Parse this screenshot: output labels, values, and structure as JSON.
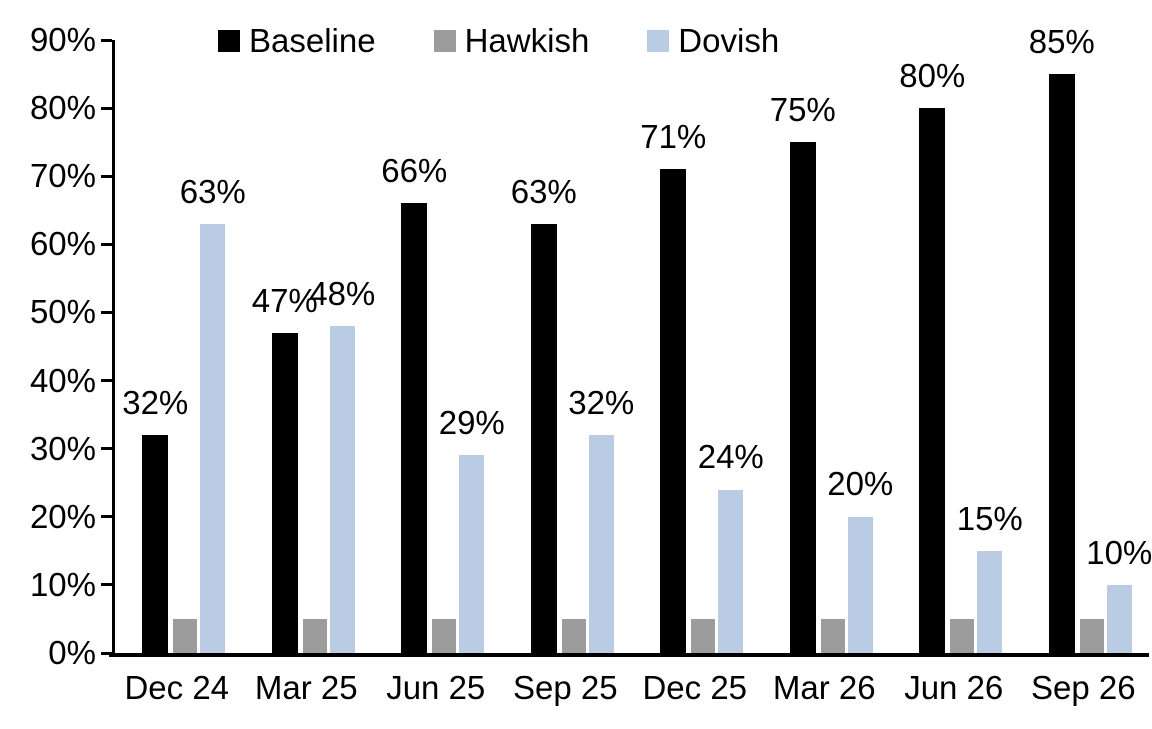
{
  "chart_data": {
    "type": "bar",
    "title": "",
    "categories": [
      "Dec 24",
      "Mar 25",
      "Jun 25",
      "Sep 25",
      "Dec 25",
      "Mar 26",
      "Jun 26",
      "Sep 26"
    ],
    "series": [
      {
        "name": "Baseline",
        "color": "#000000",
        "values": [
          32,
          47,
          66,
          63,
          71,
          75,
          80,
          85
        ],
        "data_labels": true,
        "labels": [
          "32%",
          "47%",
          "66%",
          "63%",
          "71%",
          "75%",
          "80%",
          "85%"
        ]
      },
      {
        "name": "Hawkish",
        "color": "#9c9c9c",
        "values": [
          5,
          5,
          5,
          5,
          5,
          5,
          5,
          5
        ],
        "data_labels": false,
        "labels": []
      },
      {
        "name": "Dovish",
        "color": "#b9cce3",
        "values": [
          63,
          48,
          29,
          32,
          24,
          20,
          15,
          10
        ],
        "data_labels": true,
        "labels": [
          "63%",
          "48%",
          "29%",
          "32%",
          "24%",
          "20%",
          "15%",
          "10%"
        ]
      }
    ],
    "ylim": [
      0,
      90
    ],
    "ytick_step": 10,
    "ytick_labels": [
      "0%",
      "10%",
      "20%",
      "30%",
      "40%",
      "50%",
      "60%",
      "70%",
      "80%",
      "90%"
    ],
    "legend_position": "top",
    "legend_entries": [
      "Baseline",
      "Hawkish",
      "Dovish"
    ],
    "grid": false,
    "axis_color": "#000000",
    "background": "#ffffff"
  }
}
